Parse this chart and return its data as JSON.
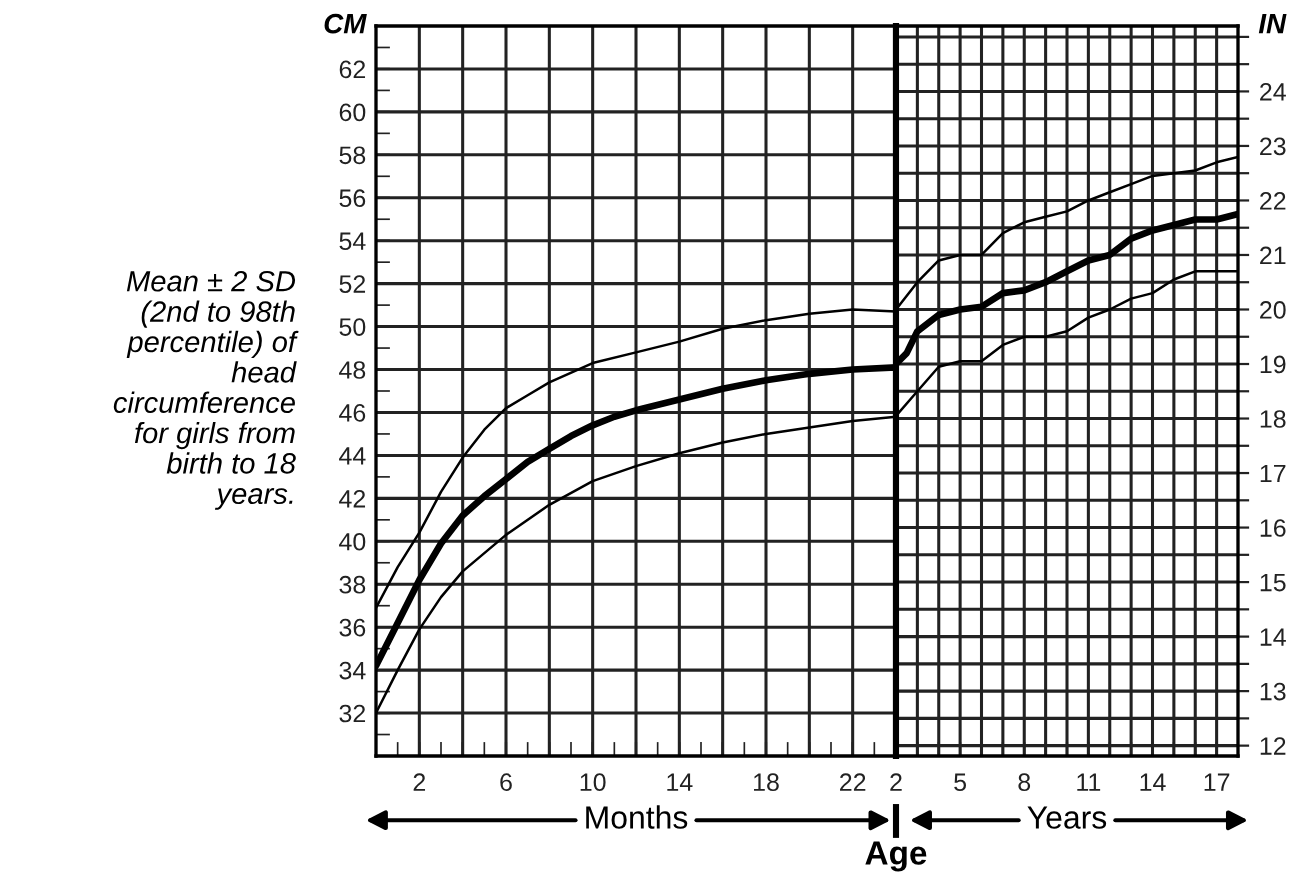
{
  "chart_data": [
    {
      "type": "line",
      "xlabel": "Months",
      "ylabel": "CM",
      "xlim": [
        0,
        24
      ],
      "xticks": [
        2,
        {
          "value": 4,
          "label": null
        },
        6,
        {
          "value": 8,
          "label": null
        },
        10,
        {
          "value": 12,
          "label": null
        },
        14,
        {
          "value": 16,
          "label": null
        },
        18,
        {
          "value": 20,
          "label": null
        },
        22
      ],
      "ylim": [
        30,
        64
      ],
      "yticks": [
        32,
        34,
        36,
        38,
        40,
        42,
        44,
        46,
        48,
        50,
        52,
        54,
        56,
        58,
        60,
        62
      ],
      "grid": true,
      "series": [
        {
          "color": "#000000",
          "x": [
            0,
            1,
            2,
            3,
            4,
            6,
            8,
            10,
            12,
            14,
            16,
            18,
            20,
            22,
            24
          ],
          "values": [
            32.0,
            34.0,
            35.9,
            37.4,
            38.6,
            40.3,
            41.7,
            42.8,
            43.5,
            44.1,
            44.6,
            45.0,
            45.3,
            45.6,
            45.8
          ]
        },
        {
          "color": "#000000",
          "x": [
            0,
            1,
            2,
            3,
            4,
            5,
            6,
            7,
            8,
            9,
            10,
            11,
            12,
            14,
            16,
            18,
            20,
            22,
            24
          ],
          "values": [
            34.2,
            36.2,
            38.2,
            39.9,
            41.2,
            42.1,
            42.9,
            43.7,
            44.3,
            44.9,
            45.4,
            45.8,
            46.1,
            46.6,
            47.1,
            47.5,
            47.8,
            48.0,
            48.1
          ]
        },
        {
          "color": "#000000",
          "x": [
            0,
            1,
            2,
            3,
            4,
            5,
            6,
            7,
            8,
            10,
            12,
            14,
            16,
            18,
            20,
            22,
            24
          ],
          "values": [
            36.9,
            38.8,
            40.4,
            42.3,
            43.9,
            45.2,
            46.2,
            46.8,
            47.4,
            48.3,
            48.8,
            49.3,
            49.9,
            50.3,
            50.6,
            50.8,
            50.7
          ]
        }
      ],
      "annotations": [
        "Mean ± 2 SD (2nd to 98th percentile) of head circumference for girls from birth to 18 years.",
        "Age"
      ]
    },
    {
      "type": "line",
      "xlabel": "Years",
      "y2label": "IN",
      "xlim": [
        2,
        18
      ],
      "xticks": [
        2,
        {
          "value": 3,
          "label": null
        },
        {
          "value": 4,
          "label": null
        },
        5,
        {
          "value": 6,
          "label": null
        },
        {
          "value": 7,
          "label": null
        },
        8,
        {
          "value": 9,
          "label": null
        },
        {
          "value": 10,
          "label": null
        },
        11,
        {
          "value": 12,
          "label": null
        },
        {
          "value": 13,
          "label": null
        },
        14,
        {
          "value": 15,
          "label": null
        },
        {
          "value": 16,
          "label": null
        },
        17
      ],
      "y2lim": [
        11.81,
        25.2
      ],
      "y2ticks": [
        12,
        {
          "value": 12.5,
          "label": null
        },
        13,
        {
          "value": 13.5,
          "label": null
        },
        14,
        {
          "value": 14.5,
          "label": null
        },
        15,
        {
          "value": 15.5,
          "label": null
        },
        16,
        {
          "value": 16.5,
          "label": null
        },
        17,
        {
          "value": 17.5,
          "label": null
        },
        18,
        {
          "value": 18.5,
          "label": null
        },
        19,
        {
          "value": 19.5,
          "label": null
        },
        20,
        {
          "value": 20.5,
          "label": null
        },
        21,
        {
          "value": 21.5,
          "label": null
        },
        22,
        {
          "value": 22.5,
          "label": null
        },
        23,
        {
          "value": 23.5,
          "label": null
        },
        24,
        {
          "value": 24.5,
          "label": null
        },
        {
          "value": 25,
          "label": null
        }
      ],
      "grid": true,
      "series": [
        {
          "color": "#000000",
          "axis": "y2",
          "x": [
            2,
            3,
            4,
            5,
            6,
            7,
            8,
            9,
            10,
            11,
            12,
            13,
            14,
            15,
            16,
            17,
            18
          ],
          "values": [
            18.05,
            18.5,
            18.95,
            19.05,
            19.05,
            19.35,
            19.5,
            19.5,
            19.6,
            19.85,
            20.0,
            20.2,
            20.3,
            20.55,
            20.7,
            20.7,
            20.7
          ]
        },
        {
          "color": "#000000",
          "axis": "y2",
          "x": [
            2,
            2.5,
            3,
            4,
            5,
            6,
            7,
            8,
            9,
            10,
            11,
            12,
            13,
            14,
            15,
            16,
            17,
            18
          ],
          "values": [
            19.0,
            19.2,
            19.6,
            19.9,
            20.0,
            20.05,
            20.3,
            20.35,
            20.5,
            20.7,
            20.9,
            21.0,
            21.3,
            21.45,
            21.55,
            21.65,
            21.65,
            21.75
          ]
        },
        {
          "color": "#000000",
          "axis": "y2",
          "x": [
            2,
            3,
            4,
            5,
            6,
            7,
            8,
            9,
            10,
            11,
            12,
            13,
            14,
            15,
            16,
            17,
            18
          ],
          "values": [
            20.0,
            20.5,
            20.9,
            21.0,
            21.0,
            21.4,
            21.6,
            21.7,
            21.8,
            22.0,
            22.15,
            22.3,
            22.45,
            22.5,
            22.55,
            22.7,
            22.8
          ]
        }
      ]
    }
  ]
}
